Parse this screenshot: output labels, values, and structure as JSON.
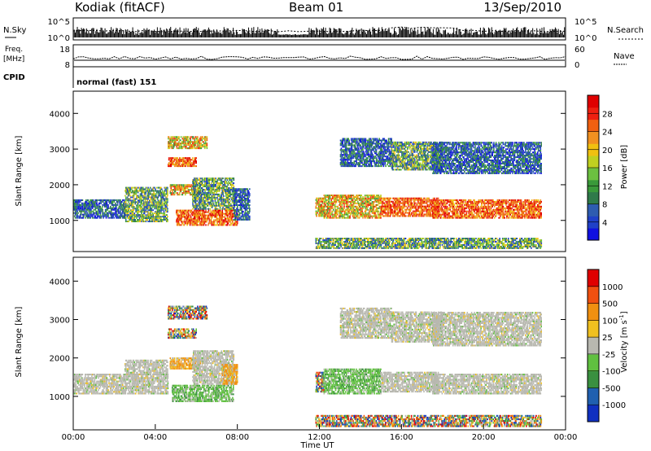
{
  "header": {
    "station": "Kodiak (fitACF)",
    "beam": "Beam 01",
    "date": "13/Sep/2010"
  },
  "top_panels": {
    "nsky_label": "N.Sky",
    "nsearch_label": "N.Search",
    "nsky_ticks": [
      "10^5",
      "10^0"
    ],
    "nsearch_ticks": [
      "10^5",
      "10^0"
    ],
    "freq_label_1": "Freq.",
    "freq_label_2": "[MHz]",
    "freq_ticks": [
      "18",
      "8"
    ],
    "nave_label": "Nave",
    "nave_ticks": [
      "60",
      "0"
    ],
    "cpid_label": "CPID",
    "cpid_value": "normal (fast) 151"
  },
  "chart_data": [
    {
      "type": "heatmap",
      "panel": "power",
      "ylabel": "Slant Range [km]",
      "yticks": [
        1000,
        2000,
        3000,
        4000
      ],
      "ylim": [
        150,
        4600
      ],
      "xlim": [
        0,
        24
      ],
      "colorbar": {
        "label": "Power [dB]",
        "ticks": [
          "28",
          "24",
          "20",
          "16",
          "12",
          "8",
          "4"
        ],
        "colors": [
          "#1010e0",
          "#2040c8",
          "#2e5cb0",
          "#2f7a4a",
          "#3a9a3a",
          "#6cc040",
          "#c0d020",
          "#f0c010",
          "#f09020",
          "#f06010",
          "#ee2010",
          "#e00000"
        ]
      },
      "regions": [
        {
          "t": [
            0.0,
            2.5
          ],
          "r": [
            1050,
            1550
          ],
          "level": "low"
        },
        {
          "t": [
            2.5,
            4.6
          ],
          "r": [
            950,
            1900
          ],
          "level": "lowmid"
        },
        {
          "t": [
            4.6,
            6.0
          ],
          "r": [
            2500,
            2750
          ],
          "level": "high"
        },
        {
          "t": [
            4.7,
            6.2
          ],
          "r": [
            1700,
            2000
          ],
          "level": "mid"
        },
        {
          "t": [
            5.0,
            8.0
          ],
          "r": [
            850,
            1300
          ],
          "level": "high"
        },
        {
          "t": [
            5.8,
            7.8
          ],
          "r": [
            1300,
            2200
          ],
          "level": "lowmid"
        },
        {
          "t": [
            4.6,
            6.5
          ],
          "r": [
            3000,
            3350
          ],
          "level": "mid"
        },
        {
          "t": [
            7.8,
            8.6
          ],
          "r": [
            1000,
            1900
          ],
          "level": "low"
        },
        {
          "t": [
            11.8,
            12.2
          ],
          "r": [
            1100,
            1600
          ],
          "level": "mid"
        },
        {
          "t": [
            12.2,
            15.0
          ],
          "r": [
            1050,
            1700
          ],
          "level": "mid"
        },
        {
          "t": [
            13.0,
            15.5
          ],
          "r": [
            2500,
            3300
          ],
          "level": "low"
        },
        {
          "t": [
            15.0,
            17.8
          ],
          "r": [
            1100,
            1600
          ],
          "level": "high"
        },
        {
          "t": [
            15.5,
            18.0
          ],
          "r": [
            2400,
            3200
          ],
          "level": "lowmid"
        },
        {
          "t": [
            17.5,
            22.8
          ],
          "r": [
            1050,
            1550
          ],
          "level": "high"
        },
        {
          "t": [
            17.5,
            22.8
          ],
          "r": [
            2300,
            3200
          ],
          "level": "low"
        },
        {
          "t": [
            11.8,
            22.8
          ],
          "r": [
            200,
            500
          ],
          "level": "lowmid"
        }
      ]
    },
    {
      "type": "heatmap",
      "panel": "velocity",
      "ylabel": "Slant Range [km]",
      "xlabel": "Time UT",
      "xticks": [
        "00:00",
        "04:00",
        "08:00",
        "12:00",
        "16:00",
        "20:00",
        "00:00"
      ],
      "yticks": [
        1000,
        2000,
        3000,
        4000
      ],
      "ylim": [
        150,
        4600
      ],
      "xlim": [
        0,
        24
      ],
      "colorbar": {
        "label": "Velocity [m s",
        "label_sup": "-1",
        "label_end": "]",
        "ticks": [
          "1000",
          "500",
          "100",
          "25",
          "-25",
          "-100",
          "-500",
          "-1000"
        ],
        "colors": [
          "#1030c0",
          "#2060b0",
          "#3a9040",
          "#60c040",
          "#b8b8b0",
          "#f0c020",
          "#f09010",
          "#f05010",
          "#e00000"
        ]
      },
      "regions": [
        {
          "t": [
            0.0,
            4.6
          ],
          "r": [
            1050,
            1550
          ],
          "level": "gray"
        },
        {
          "t": [
            2.5,
            4.6
          ],
          "r": [
            1550,
            1950
          ],
          "level": "gray"
        },
        {
          "t": [
            4.6,
            6.0
          ],
          "r": [
            2500,
            2750
          ],
          "level": "mixed"
        },
        {
          "t": [
            4.7,
            6.2
          ],
          "r": [
            1700,
            2000
          ],
          "level": "orange"
        },
        {
          "t": [
            4.8,
            7.8
          ],
          "r": [
            850,
            1300
          ],
          "level": "green"
        },
        {
          "t": [
            5.8,
            7.8
          ],
          "r": [
            1300,
            2200
          ],
          "level": "gray"
        },
        {
          "t": [
            4.6,
            6.5
          ],
          "r": [
            3000,
            3350
          ],
          "level": "mixed"
        },
        {
          "t": [
            7.2,
            8.0
          ],
          "r": [
            1300,
            1800
          ],
          "level": "orange"
        },
        {
          "t": [
            11.8,
            12.2
          ],
          "r": [
            1100,
            1600
          ],
          "level": "mixed"
        },
        {
          "t": [
            12.2,
            15.0
          ],
          "r": [
            1050,
            1700
          ],
          "level": "green"
        },
        {
          "t": [
            13.0,
            15.5
          ],
          "r": [
            2500,
            3300
          ],
          "level": "gray"
        },
        {
          "t": [
            15.0,
            17.8
          ],
          "r": [
            1100,
            1600
          ],
          "level": "gray"
        },
        {
          "t": [
            15.5,
            18.0
          ],
          "r": [
            2400,
            3200
          ],
          "level": "gray"
        },
        {
          "t": [
            17.5,
            22.8
          ],
          "r": [
            1050,
            1550
          ],
          "level": "gray"
        },
        {
          "t": [
            17.5,
            22.8
          ],
          "r": [
            2300,
            3200
          ],
          "level": "gray"
        },
        {
          "t": [
            11.8,
            22.8
          ],
          "r": [
            200,
            500
          ],
          "level": "mixed"
        }
      ]
    }
  ]
}
